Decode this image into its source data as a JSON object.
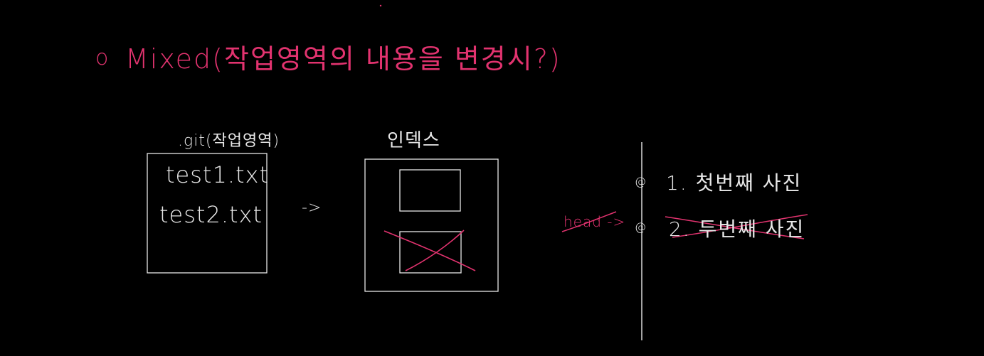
{
  "title": {
    "bullet": "o",
    "text": "Mixed(작업영역의 내용을 변경시?)"
  },
  "working_area": {
    "label": ".git(작업영역)",
    "files": [
      "test1.txt",
      "test2.txt"
    ]
  },
  "arrow_label": "->",
  "index": {
    "label": "인덱스"
  },
  "history": {
    "head_label": "head ->",
    "commits": [
      {
        "marker": "@",
        "text": "1. 첫번째   사진",
        "struck": false
      },
      {
        "marker": "@",
        "text": "2. 두번째   사진",
        "struck": true
      }
    ]
  },
  "colors": {
    "background": "#000000",
    "chalk_white": "#e8e8e8",
    "accent_pink": "#e2336f"
  }
}
